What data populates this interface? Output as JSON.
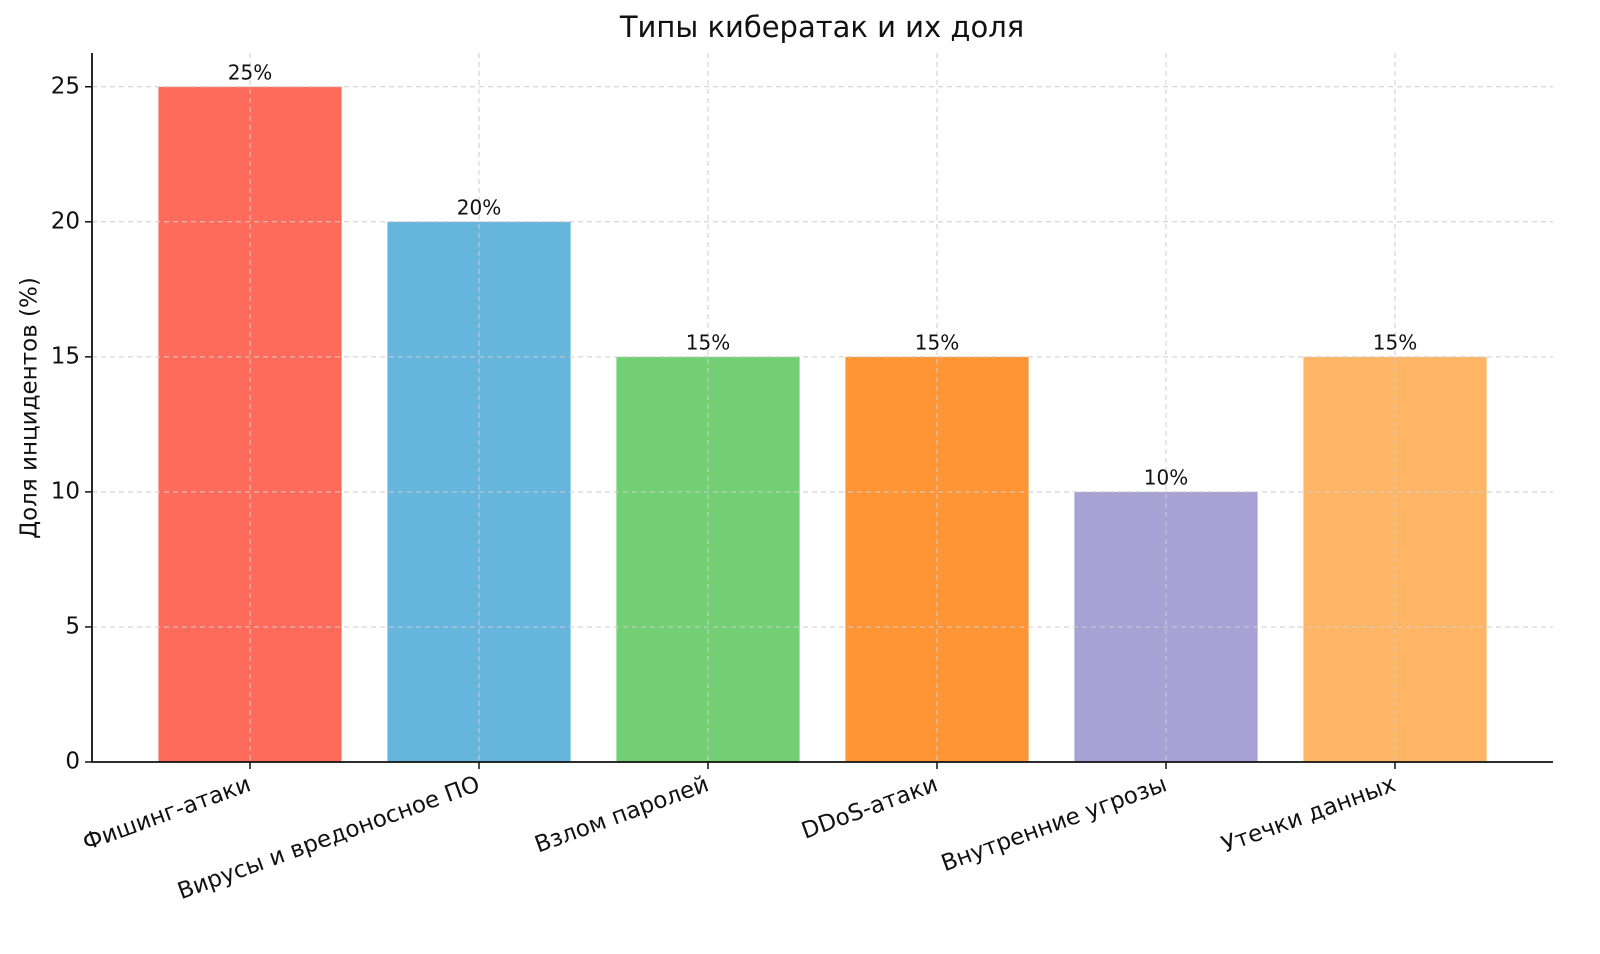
{
  "chart_data": {
    "type": "bar",
    "title": "Типы кибератак и их доля",
    "y_label": "Доля инцидентов (%)",
    "categories": [
      "Фишинг-атаки",
      "Вирусы и вредоносное ПО",
      "Взлом паролей",
      "DDoS-атаки",
      "Внутренние угрозы",
      "Утечки данных"
    ],
    "values": [
      25,
      20,
      15,
      15,
      10,
      15
    ],
    "value_labels": [
      "25%",
      "20%",
      "15%",
      "15%",
      "10%",
      "15%"
    ],
    "colors": [
      "#ff6b5b",
      "#66b5dc",
      "#72cf73",
      "#ff9535",
      "#a8a1d3",
      "#ffb566"
    ],
    "ylim": [
      0,
      26.25
    ],
    "yticks": [
      0,
      5,
      10,
      15,
      20,
      25
    ],
    "grid": true
  }
}
